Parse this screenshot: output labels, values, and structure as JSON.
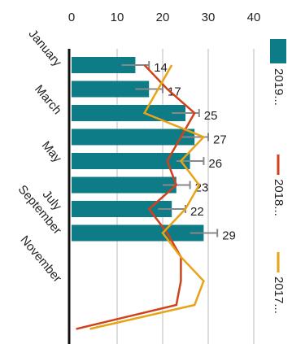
{
  "chart_data": {
    "type": "bar",
    "categories": [
      "January",
      null,
      "March",
      null,
      "May",
      null,
      "July",
      "September",
      null,
      "November",
      null,
      null
    ],
    "ylim": [
      0,
      40
    ],
    "yticks": [
      0,
      10,
      20,
      30,
      40
    ],
    "grid": true,
    "series": [
      {
        "name": "2019...",
        "type": "bar",
        "color": "#0e7c86",
        "values": [
          14,
          17,
          25,
          27,
          26,
          23,
          22,
          29,
          null,
          null,
          null,
          null
        ],
        "errors": [
          3,
          3,
          3,
          3,
          3,
          3,
          3,
          3,
          null,
          null,
          null,
          null
        ]
      },
      {
        "name": "2018...",
        "type": "line",
        "color": "#d0421b",
        "values": [
          16,
          21,
          27,
          24,
          21,
          23,
          17,
          21,
          24,
          24,
          23,
          1
        ]
      },
      {
        "name": "2017...",
        "type": "line",
        "color": "#e8a317",
        "values": [
          22,
          19,
          16,
          29,
          24,
          28,
          25,
          20,
          24,
          29,
          27,
          4
        ]
      }
    ]
  }
}
